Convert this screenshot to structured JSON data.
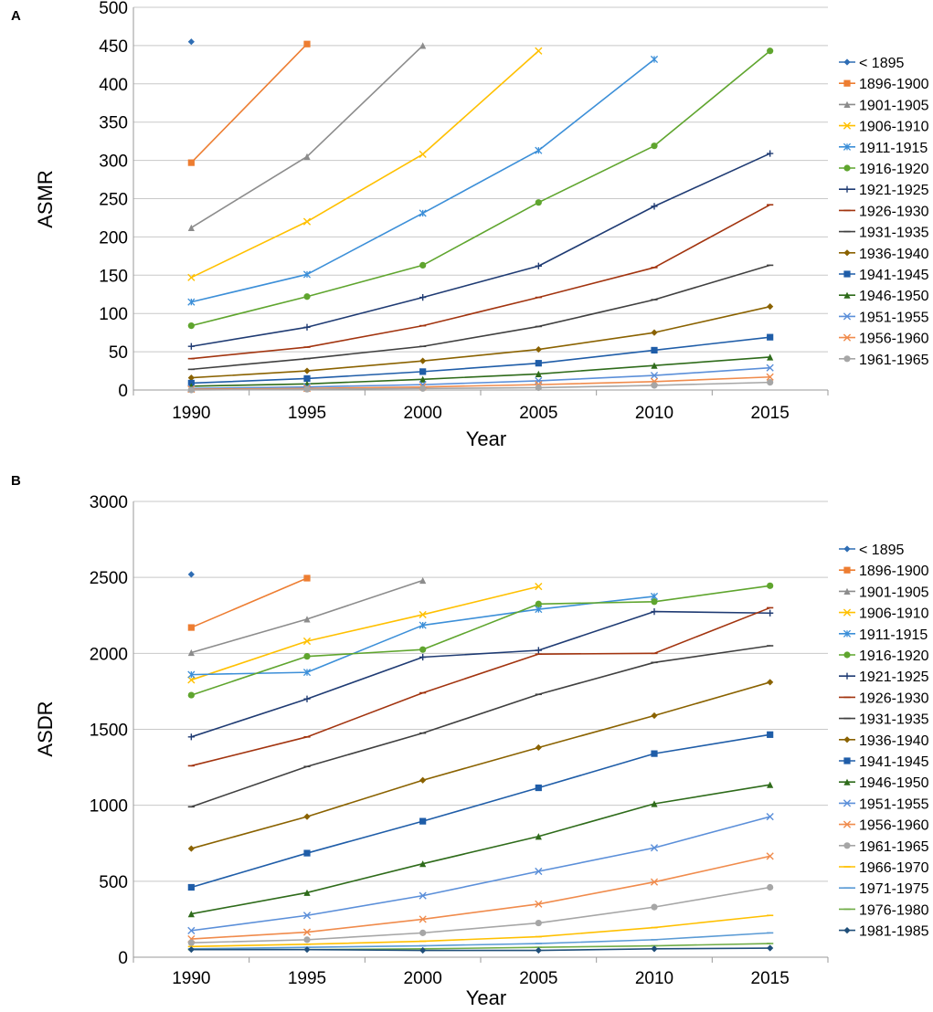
{
  "chart_data": [
    {
      "panel": "A",
      "type": "line",
      "title": "",
      "xlabel": "Year",
      "ylabel": "ASMR",
      "categories": [
        "1990",
        "1995",
        "2000",
        "2005",
        "2010",
        "2015"
      ],
      "ylim": [
        0,
        500
      ],
      "yticks": [
        0,
        50,
        100,
        150,
        200,
        250,
        300,
        350,
        400,
        450,
        500
      ],
      "grid": true,
      "legend": "right",
      "series": [
        {
          "name": "< 1895",
          "color": "#2E6DB4",
          "marker": "diamond",
          "values": [
            455,
            null,
            null,
            null,
            null,
            null
          ]
        },
        {
          "name": "1896-1900",
          "color": "#ED7D31",
          "marker": "square",
          "values": [
            297,
            452,
            null,
            null,
            null,
            null
          ]
        },
        {
          "name": "1901-1905",
          "color": "#8C8C8C",
          "marker": "triangle",
          "values": [
            212,
            305,
            450,
            null,
            null,
            null
          ]
        },
        {
          "name": "1906-1910",
          "color": "#FFC000",
          "marker": "x",
          "values": [
            147,
            220,
            308,
            443,
            null,
            null
          ]
        },
        {
          "name": "1911-1915",
          "color": "#3C8FD8",
          "marker": "star",
          "values": [
            115,
            151,
            231,
            313,
            432,
            null
          ]
        },
        {
          "name": "1916-1920",
          "color": "#5FA52E",
          "marker": "circle",
          "values": [
            84,
            122,
            163,
            245,
            319,
            443
          ]
        },
        {
          "name": "1921-1925",
          "color": "#1F3B73",
          "marker": "plus",
          "values": [
            57,
            82,
            121,
            162,
            240,
            309
          ]
        },
        {
          "name": "1926-1930",
          "color": "#A2340F",
          "marker": "dash",
          "values": [
            41,
            56,
            84,
            121,
            160,
            242
          ]
        },
        {
          "name": "1931-1935",
          "color": "#404040",
          "marker": "dash",
          "values": [
            27,
            41,
            57,
            83,
            118,
            163
          ]
        },
        {
          "name": "1936-1940",
          "color": "#8A6200",
          "marker": "diamond",
          "values": [
            16,
            25,
            38,
            53,
            75,
            109
          ]
        },
        {
          "name": "1941-1945",
          "color": "#1F5DA8",
          "marker": "square",
          "values": [
            9,
            15,
            24,
            35,
            52,
            69
          ]
        },
        {
          "name": "1946-1950",
          "color": "#2E6B1A",
          "marker": "triangle",
          "values": [
            5,
            8,
            14,
            21,
            32,
            43
          ]
        },
        {
          "name": "1951-1955",
          "color": "#5B8FD9",
          "marker": "x",
          "values": [
            2,
            4,
            7,
            12,
            19,
            29
          ]
        },
        {
          "name": "1956-1960",
          "color": "#F08B4C",
          "marker": "x",
          "values": [
            1,
            2,
            4,
            7,
            11,
            17
          ]
        },
        {
          "name": "1961-1965",
          "color": "#A6A6A6",
          "marker": "circle",
          "values": [
            0,
            1,
            2,
            3,
            6,
            10
          ]
        }
      ]
    },
    {
      "panel": "B",
      "type": "line",
      "title": "",
      "xlabel": "Year",
      "ylabel": "ASDR",
      "categories": [
        "1990",
        "1995",
        "2000",
        "2005",
        "2010",
        "2015"
      ],
      "ylim": [
        0,
        3000
      ],
      "yticks": [
        0,
        500,
        1000,
        1500,
        2000,
        2500,
        3000
      ],
      "grid": true,
      "legend": "right",
      "series": [
        {
          "name": "< 1895",
          "color": "#2E6DB4",
          "marker": "diamond",
          "values": [
            2520,
            null,
            null,
            null,
            null,
            null
          ]
        },
        {
          "name": "1896-1900",
          "color": "#ED7D31",
          "marker": "square",
          "values": [
            2170,
            2495,
            null,
            null,
            null,
            null
          ]
        },
        {
          "name": "1901-1905",
          "color": "#8C8C8C",
          "marker": "triangle",
          "values": [
            2005,
            2225,
            2480,
            null,
            null,
            null
          ]
        },
        {
          "name": "1906-1910",
          "color": "#FFC000",
          "marker": "x",
          "values": [
            1825,
            2080,
            2255,
            2440,
            null,
            null
          ]
        },
        {
          "name": "1911-1915",
          "color": "#3C8FD8",
          "marker": "star",
          "values": [
            1860,
            1875,
            2185,
            2290,
            2375,
            null
          ]
        },
        {
          "name": "1916-1920",
          "color": "#5FA52E",
          "marker": "circle",
          "values": [
            1725,
            1980,
            2025,
            2325,
            2340,
            2445
          ]
        },
        {
          "name": "1921-1925",
          "color": "#1F3B73",
          "marker": "plus",
          "values": [
            1450,
            1700,
            1975,
            2020,
            2275,
            2265
          ]
        },
        {
          "name": "1926-1930",
          "color": "#A2340F",
          "marker": "dash",
          "values": [
            1260,
            1450,
            1740,
            1995,
            2000,
            2300
          ]
        },
        {
          "name": "1931-1935",
          "color": "#404040",
          "marker": "dash",
          "values": [
            990,
            1255,
            1475,
            1730,
            1940,
            2050
          ]
        },
        {
          "name": "1936-1940",
          "color": "#8A6200",
          "marker": "diamond",
          "values": [
            715,
            925,
            1165,
            1380,
            1590,
            1810
          ]
        },
        {
          "name": "1941-1945",
          "color": "#1F5DA8",
          "marker": "square",
          "values": [
            460,
            685,
            895,
            1115,
            1340,
            1465
          ]
        },
        {
          "name": "1946-1950",
          "color": "#2E6B1A",
          "marker": "triangle",
          "values": [
            285,
            425,
            615,
            795,
            1010,
            1135
          ]
        },
        {
          "name": "1951-1955",
          "color": "#5B8FD9",
          "marker": "x",
          "values": [
            175,
            275,
            405,
            565,
            720,
            925
          ]
        },
        {
          "name": "1956-1960",
          "color": "#F08B4C",
          "marker": "x",
          "values": [
            120,
            165,
            250,
            350,
            495,
            665
          ]
        },
        {
          "name": "1961-1965",
          "color": "#A6A6A6",
          "marker": "circle",
          "values": [
            95,
            115,
            160,
            225,
            330,
            460
          ]
        },
        {
          "name": "1966-1970",
          "color": "#FFC000",
          "marker": "dash",
          "values": [
            70,
            85,
            105,
            135,
            195,
            275
          ]
        },
        {
          "name": "1971-1975",
          "color": "#5B9BD5",
          "marker": "dash",
          "values": [
            55,
            65,
            75,
            90,
            115,
            160
          ]
        },
        {
          "name": "1976-1980",
          "color": "#70AD47",
          "marker": "dash",
          "values": [
            50,
            50,
            55,
            65,
            75,
            90
          ]
        },
        {
          "name": "1981-1985",
          "color": "#1F4E79",
          "marker": "diamond",
          "values": [
            50,
            50,
            45,
            45,
            55,
            60
          ]
        }
      ]
    }
  ]
}
